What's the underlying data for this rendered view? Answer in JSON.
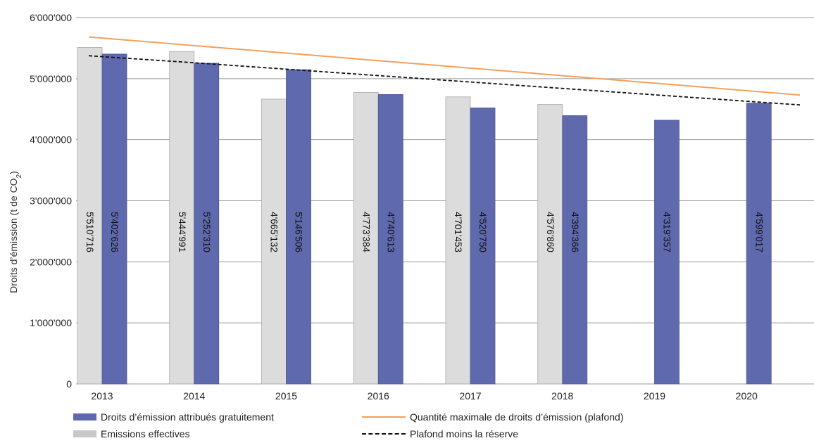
{
  "chart_data": {
    "type": "bar",
    "title": "",
    "xlabel": "",
    "ylabel": "Droits d’émission (t de CO2)",
    "ylim": [
      0,
      6000000
    ],
    "yticks": [
      0,
      1000000,
      2000000,
      3000000,
      4000000,
      5000000,
      6000000
    ],
    "ytick_labels": [
      "0",
      "1'000'000",
      "2'000'000",
      "3'000'000",
      "4'000'000",
      "5'000'000",
      "6'000'000"
    ],
    "categories": [
      "2013",
      "2014",
      "2015",
      "2016",
      "2017",
      "2018",
      "2019",
      "2020"
    ],
    "grid": true,
    "legend_position": "bottom",
    "series": [
      {
        "name": "Emissions effectives",
        "kind": "bar",
        "color": "#dcdcdc",
        "values": [
          5510716,
          5444991,
          4665132,
          4773384,
          4701453,
          4576860,
          null,
          null
        ],
        "labels": [
          "5'510'716",
          "5'444'991",
          "4'665'132",
          "4'773'384",
          "4'701'453",
          "4'576'860",
          null,
          null
        ]
      },
      {
        "name": "Droits d’émission attribués gratuitement",
        "kind": "bar",
        "color": "#5f69ae",
        "values": [
          5402626,
          5252310,
          5146506,
          4740613,
          4520750,
          4394366,
          4319357,
          4599017
        ],
        "labels": [
          "5'402'626",
          "5'252'310",
          "5'146'506",
          "4'740'613",
          "4'520'750",
          "4'394'366",
          "4'319'357",
          "4'599'017"
        ]
      },
      {
        "name": "Quantité maximale de droits d’émission (plafond)",
        "kind": "line",
        "style": "solid",
        "color": "#f5a05a",
        "values": [
          5664000,
          5541000,
          5418000,
          5295000,
          5172000,
          5049000,
          4926000,
          4803000
        ]
      },
      {
        "name": "Plafond moins la réserve",
        "kind": "line",
        "style": "dashed",
        "color": "#111111",
        "values": [
          5360000,
          5260000,
          5155000,
          5050000,
          4945000,
          4840000,
          4735000,
          4630000
        ]
      }
    ]
  },
  "legend": {
    "free_allocation": "Droits d’émission attribués gratuitement",
    "actual_emissions": "Emissions effectives",
    "cap": "Quantité maximale de droits d’émission (plafond)",
    "cap_minus_reserve": "Plafond moins la réserve"
  },
  "colors": {
    "free_allocation": "#5f69ae",
    "actual_emissions": "#dcdcdc",
    "cap": "#f5a05a",
    "cap_minus_reserve": "#111111",
    "grid": "#9a9a9a"
  }
}
